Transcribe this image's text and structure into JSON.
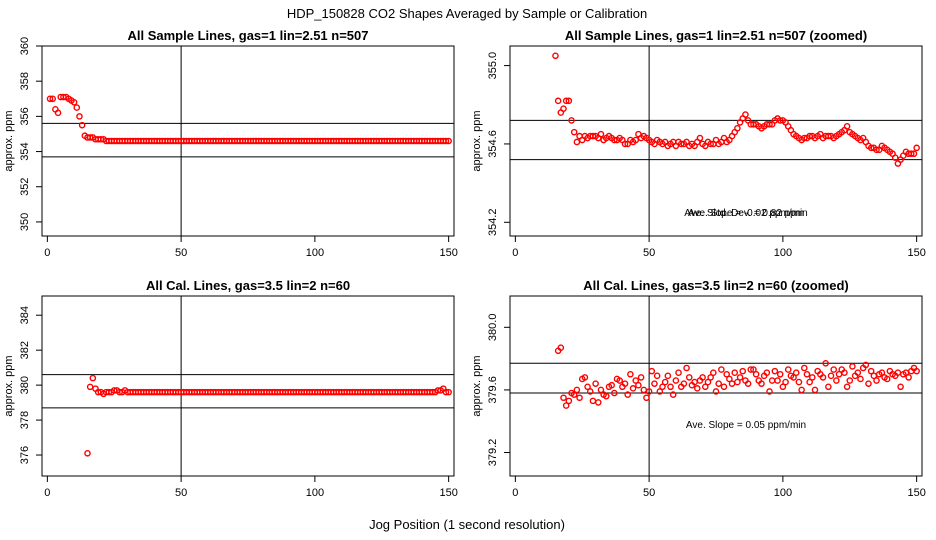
{
  "figure": {
    "title": "HDP_150828  CO2 Shapes Averaged by Sample or Calibration",
    "xlabel": "Jog Position (1 second resolution)"
  },
  "colors": {
    "points": "#ff0000",
    "axes": "#000000",
    "background": "#ffffff"
  },
  "chart_data": [
    {
      "type": "scatter",
      "title": "All Sample Lines, gas=1 lin=2.51 n=507",
      "ylabel": "approx. ppm",
      "xlim": [
        -2,
        152
      ],
      "ylim": [
        349.2,
        360.0
      ],
      "xticks": [
        0,
        50,
        100,
        150
      ],
      "yticks": [
        350,
        352,
        354,
        356,
        358,
        360
      ],
      "vline": 50,
      "hlines": [
        355.6,
        353.7
      ],
      "annotations": [],
      "series": {
        "x_start": 1,
        "x_end": 150,
        "values": [
          357.0,
          357.0,
          356.4,
          356.2,
          357.1,
          357.1,
          357.1,
          357.0,
          356.9,
          356.8,
          356.5,
          356.0,
          355.5,
          354.9,
          354.8,
          354.8,
          354.8,
          354.7,
          354.7,
          354.7,
          354.7,
          354.6,
          354.6,
          354.6,
          354.6,
          354.6,
          354.6,
          354.6,
          354.6,
          354.6,
          354.6,
          354.6,
          354.6,
          354.6,
          354.6,
          354.6,
          354.6,
          354.6,
          354.6,
          354.6,
          354.6,
          354.6,
          354.6,
          354.6,
          354.6,
          354.6,
          354.6,
          354.6,
          354.6,
          354.6,
          354.6,
          354.6,
          354.6,
          354.6,
          354.6,
          354.6,
          354.6,
          354.6,
          354.6,
          354.6,
          354.6,
          354.6,
          354.6,
          354.6,
          354.6,
          354.6,
          354.6,
          354.6,
          354.6,
          354.6,
          354.6,
          354.6,
          354.6,
          354.6,
          354.6,
          354.6,
          354.6,
          354.6,
          354.6,
          354.6,
          354.6,
          354.6,
          354.6,
          354.6,
          354.6,
          354.6,
          354.6,
          354.6,
          354.6,
          354.6,
          354.6,
          354.6,
          354.6,
          354.6,
          354.6,
          354.6,
          354.6,
          354.6,
          354.6,
          354.6,
          354.6,
          354.6,
          354.6,
          354.6,
          354.6,
          354.6,
          354.6,
          354.6,
          354.6,
          354.6,
          354.6,
          354.6,
          354.6,
          354.6,
          354.6,
          354.6,
          354.6,
          354.6,
          354.6,
          354.6,
          354.6,
          354.6,
          354.6,
          354.6,
          354.6,
          354.6,
          354.6,
          354.6,
          354.6,
          354.6,
          354.6,
          354.6,
          354.6,
          354.6,
          354.6,
          354.6,
          354.6,
          354.6,
          354.6,
          354.6,
          354.6,
          354.6,
          354.6,
          354.6,
          354.6,
          354.6,
          354.6,
          354.6,
          354.6,
          354.6
        ]
      }
    },
    {
      "type": "scatter",
      "title": "All Sample Lines, gas=1 lin=2.51 n=507 (zoomed)",
      "ylabel": "approx. ppm",
      "xlim": [
        -2,
        152
      ],
      "ylim": [
        354.13,
        355.1
      ],
      "xticks": [
        0,
        50,
        100,
        150
      ],
      "yticks": [
        354.2,
        354.6,
        355.0
      ],
      "vline": 50,
      "hlines": [
        354.72,
        354.52
      ],
      "annotations": [
        "Ave. Slope =  -0.02  ppm/min",
        "Ave. Std. Dev. =  0.82  ppm"
      ],
      "series": {
        "x_start": 15,
        "x_end": 150,
        "values": [
          355.05,
          354.82,
          354.76,
          354.78,
          354.82,
          354.82,
          354.72,
          354.66,
          354.61,
          354.64,
          354.62,
          354.64,
          354.63,
          354.64,
          354.64,
          354.64,
          354.63,
          354.65,
          354.62,
          354.63,
          354.64,
          354.63,
          354.62,
          354.62,
          354.63,
          354.62,
          354.6,
          354.6,
          354.62,
          354.61,
          354.62,
          354.65,
          354.63,
          354.64,
          354.63,
          354.62,
          354.61,
          354.6,
          354.62,
          354.61,
          354.6,
          354.61,
          354.59,
          354.6,
          354.61,
          354.59,
          354.61,
          354.6,
          354.6,
          354.61,
          354.59,
          354.6,
          354.59,
          354.61,
          354.63,
          354.6,
          354.59,
          354.61,
          354.6,
          354.6,
          354.62,
          354.6,
          354.61,
          354.63,
          354.61,
          354.62,
          354.64,
          354.66,
          354.68,
          354.71,
          354.73,
          354.75,
          354.72,
          354.7,
          354.7,
          354.7,
          354.69,
          354.68,
          354.69,
          354.7,
          354.7,
          354.7,
          354.72,
          354.73,
          354.72,
          354.72,
          354.71,
          354.69,
          354.67,
          354.65,
          354.64,
          354.63,
          354.62,
          354.63,
          354.63,
          354.64,
          354.64,
          354.63,
          354.64,
          354.65,
          354.63,
          354.64,
          354.64,
          354.64,
          354.63,
          354.64,
          354.65,
          354.66,
          354.67,
          354.69,
          354.66,
          354.65,
          354.64,
          354.63,
          354.62,
          354.63,
          354.61,
          354.59,
          354.58,
          354.58,
          354.57,
          354.57,
          354.59,
          354.58,
          354.57,
          354.56,
          354.55,
          354.53,
          354.5,
          354.52,
          354.54,
          354.56,
          354.55,
          354.55,
          354.55,
          354.58
        ]
      }
    },
    {
      "type": "scatter",
      "title": "All Cal. Lines, gas=3.5 lin=2 n=60",
      "ylabel": "approx. ppm",
      "xlim": [
        -2,
        152
      ],
      "ylim": [
        374.8,
        385.1
      ],
      "xticks": [
        0,
        50,
        100,
        150
      ],
      "yticks": [
        376,
        378,
        380,
        382,
        384
      ],
      "vline": 50,
      "hlines": [
        380.6,
        378.7
      ],
      "annotations": [],
      "series": {
        "x_start": 15,
        "x_end": 150,
        "values": [
          376.1,
          379.9,
          380.4,
          379.8,
          379.6,
          379.6,
          379.5,
          379.6,
          379.6,
          379.6,
          379.7,
          379.7,
          379.6,
          379.6,
          379.7,
          379.6,
          379.6,
          379.6,
          379.6,
          379.6,
          379.6,
          379.6,
          379.6,
          379.6,
          379.6,
          379.6,
          379.6,
          379.6,
          379.6,
          379.6,
          379.6,
          379.6,
          379.6,
          379.6,
          379.6,
          379.6,
          379.6,
          379.6,
          379.6,
          379.6,
          379.6,
          379.6,
          379.6,
          379.6,
          379.6,
          379.6,
          379.6,
          379.6,
          379.6,
          379.6,
          379.6,
          379.6,
          379.6,
          379.6,
          379.6,
          379.6,
          379.6,
          379.6,
          379.6,
          379.6,
          379.6,
          379.6,
          379.6,
          379.6,
          379.6,
          379.6,
          379.6,
          379.6,
          379.6,
          379.6,
          379.6,
          379.6,
          379.6,
          379.6,
          379.6,
          379.6,
          379.6,
          379.6,
          379.6,
          379.6,
          379.6,
          379.6,
          379.6,
          379.6,
          379.6,
          379.6,
          379.6,
          379.6,
          379.6,
          379.6,
          379.6,
          379.6,
          379.6,
          379.6,
          379.6,
          379.6,
          379.6,
          379.6,
          379.6,
          379.6,
          379.6,
          379.6,
          379.6,
          379.6,
          379.6,
          379.6,
          379.6,
          379.6,
          379.6,
          379.6,
          379.6,
          379.6,
          379.6,
          379.6,
          379.6,
          379.6,
          379.6,
          379.6,
          379.6,
          379.6,
          379.6,
          379.6,
          379.6,
          379.6,
          379.6,
          379.6,
          379.6,
          379.6,
          379.6,
          379.6,
          379.6,
          379.7,
          379.7,
          379.8,
          379.6,
          379.6
        ]
      }
    },
    {
      "type": "scatter",
      "title": "All Cal. Lines, gas=3.5 lin=2 n=60 (zoomed)",
      "ylabel": "approx. ppm",
      "xlim": [
        -2,
        152
      ],
      "ylim": [
        379.05,
        380.2
      ],
      "xticks": [
        0,
        50,
        100,
        150
      ],
      "yticks": [
        379.2,
        379.6,
        380.0
      ],
      "vline": 50,
      "hlines": [
        379.77,
        379.58
      ],
      "annotations": [
        "Ave. Slope =  0.05  ppm/min"
      ],
      "series": {
        "x_start": 16,
        "x_end": 150,
        "values": [
          379.85,
          379.87,
          379.55,
          379.5,
          379.53,
          379.58,
          379.57,
          379.6,
          379.55,
          379.67,
          379.68,
          379.62,
          379.59,
          379.53,
          379.64,
          379.52,
          379.6,
          379.57,
          379.56,
          379.62,
          379.63,
          379.58,
          379.67,
          379.66,
          379.62,
          379.64,
          379.57,
          379.7,
          379.61,
          379.66,
          379.63,
          379.68,
          379.6,
          379.55,
          379.59,
          379.72,
          379.64,
          379.69,
          379.59,
          379.62,
          379.65,
          379.69,
          379.62,
          379.57,
          379.66,
          379.71,
          379.62,
          379.64,
          379.74,
          379.68,
          379.63,
          379.65,
          379.61,
          379.66,
          379.68,
          379.62,
          379.65,
          379.68,
          379.71,
          379.59,
          379.64,
          379.73,
          379.62,
          379.7,
          379.67,
          379.64,
          379.71,
          379.65,
          379.68,
          379.72,
          379.66,
          379.64,
          379.73,
          379.73,
          379.7,
          379.66,
          379.64,
          379.69,
          379.71,
          379.59,
          379.66,
          379.72,
          379.66,
          379.7,
          379.62,
          379.65,
          379.73,
          379.69,
          379.68,
          379.71,
          379.65,
          379.6,
          379.74,
          379.7,
          379.65,
          379.68,
          379.6,
          379.72,
          379.7,
          379.68,
          379.77,
          379.62,
          379.69,
          379.73,
          379.66,
          379.7,
          379.73,
          379.71,
          379.62,
          379.66,
          379.75,
          379.69,
          379.71,
          379.67,
          379.74,
          379.76,
          379.64,
          379.72,
          379.69,
          379.66,
          379.7,
          379.71,
          379.68,
          379.67,
          379.72,
          379.7,
          379.69,
          379.71,
          379.62,
          379.7,
          379.71,
          379.68,
          379.72,
          379.74,
          379.72
        ]
      }
    }
  ]
}
